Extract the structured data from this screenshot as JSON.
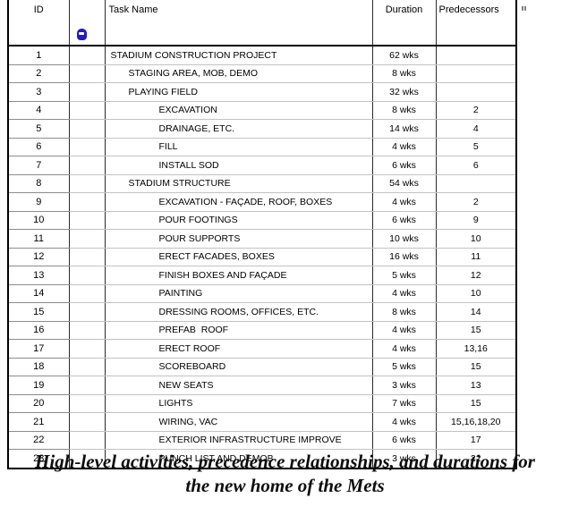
{
  "header": {
    "id_label": "ID",
    "indicator_icon": "info-indicator-icon",
    "task_label": "Task Name",
    "duration_label": "Duration",
    "predecessors_label": "Predecessors",
    "cutoff_fragment": "≣"
  },
  "table": {
    "rows": [
      {
        "id": "1",
        "level": 0,
        "name": "STADIUM CONSTRUCTION PROJECT",
        "duration": "62 wks",
        "predecessors": ""
      },
      {
        "id": "2",
        "level": 1,
        "name": "STAGING AREA, MOB, DEMO",
        "duration": "8 wks",
        "predecessors": ""
      },
      {
        "id": "3",
        "level": 1,
        "name": "PLAYING FIELD",
        "duration": "32 wks",
        "predecessors": ""
      },
      {
        "id": "4",
        "level": 2,
        "name": "EXCAVATION",
        "duration": "8 wks",
        "predecessors": "2"
      },
      {
        "id": "5",
        "level": 2,
        "name": "DRAINAGE, ETC.",
        "duration": "14 wks",
        "predecessors": "4"
      },
      {
        "id": "6",
        "level": 2,
        "name": "FILL",
        "duration": "4 wks",
        "predecessors": "5"
      },
      {
        "id": "7",
        "level": 2,
        "name": "INSTALL SOD",
        "duration": "6 wks",
        "predecessors": "6"
      },
      {
        "id": "8",
        "level": 1,
        "name": "STADIUM STRUCTURE",
        "duration": "54 wks",
        "predecessors": ""
      },
      {
        "id": "9",
        "level": 2,
        "name": "EXCAVATION - FAÇADE, ROOF, BOXES",
        "duration": "4 wks",
        "predecessors": "2"
      },
      {
        "id": "10",
        "level": 2,
        "name": "POUR FOOTINGS",
        "duration": "6 wks",
        "predecessors": "9"
      },
      {
        "id": "11",
        "level": 2,
        "name": "POUR SUPPORTS",
        "duration": "10 wks",
        "predecessors": "10"
      },
      {
        "id": "12",
        "level": 2,
        "name": "ERECT FACADES, BOXES",
        "duration": "16 wks",
        "predecessors": "11"
      },
      {
        "id": "13",
        "level": 2,
        "name": "FINISH BOXES AND FAÇADE",
        "duration": "5 wks",
        "predecessors": "12"
      },
      {
        "id": "14",
        "level": 2,
        "name": "PAINTING",
        "duration": "4 wks",
        "predecessors": "10"
      },
      {
        "id": "15",
        "level": 2,
        "name": "DRESSING ROOMS, OFFICES, ETC.",
        "duration": "8 wks",
        "predecessors": "14"
      },
      {
        "id": "16",
        "level": 2,
        "name": "PREFAB  ROOF",
        "duration": "4 wks",
        "predecessors": "15"
      },
      {
        "id": "17",
        "level": 2,
        "name": "ERECT ROOF",
        "duration": "4 wks",
        "predecessors": "13,16"
      },
      {
        "id": "18",
        "level": 2,
        "name": "SCOREBOARD",
        "duration": "5 wks",
        "predecessors": "15"
      },
      {
        "id": "19",
        "level": 2,
        "name": "NEW SEATS",
        "duration": "3 wks",
        "predecessors": "13"
      },
      {
        "id": "20",
        "level": 2,
        "name": "LIGHTS",
        "duration": "7 wks",
        "predecessors": "15"
      },
      {
        "id": "21",
        "level": 2,
        "name": "WIRING, VAC",
        "duration": "4 wks",
        "predecessors": "15,16,18,20"
      },
      {
        "id": "22",
        "level": 2,
        "name": "EXTERIOR INFRASTRUCTURE IMPROVE",
        "duration": "6 wks",
        "predecessors": "17"
      },
      {
        "id": "23",
        "level": 2,
        "name": "PUNCH LIST AND DEMOB",
        "duration": "3 wks",
        "predecessors": "22"
      }
    ]
  },
  "caption": {
    "line1": "High-level activities, precedence relationships, and durations for",
    "line2": "the new home of the Mets"
  },
  "colors": {
    "indicator_blue": "#2219c9",
    "outer_border": "#000000",
    "column_separator": "#2b2b2b",
    "row_gridline": "#c2c2c2",
    "id_row_gridline": "#8c8c8c"
  }
}
